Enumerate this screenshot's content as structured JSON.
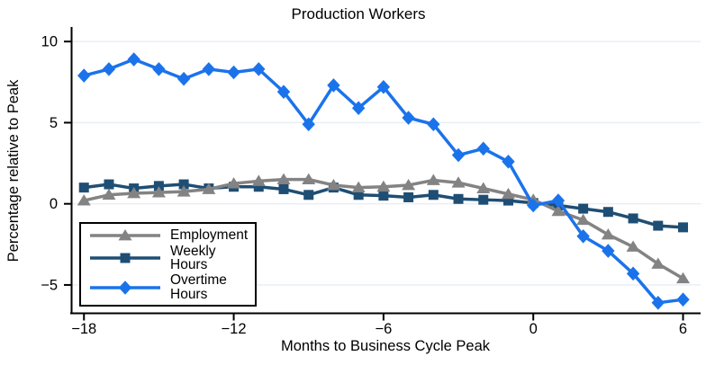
{
  "chart_data": {
    "type": "line",
    "title": "Production Workers",
    "xlabel": "Months to Business Cycle Peak",
    "ylabel": "Percentage relative to Peak",
    "x": [
      -18,
      -17,
      -16,
      -15,
      -14,
      -13,
      -12,
      -11,
      -10,
      -9,
      -8,
      -7,
      -6,
      -5,
      -4,
      -3,
      -2,
      -1,
      0,
      1,
      2,
      3,
      4,
      5,
      6
    ],
    "x_ticks": [
      -18,
      -12,
      -6,
      0,
      6
    ],
    "x_tick_labels": [
      "−18",
      "−12",
      "−6",
      "0",
      "6"
    ],
    "y_ticks": [
      10,
      5,
      0,
      -5
    ],
    "y_tick_labels": [
      "10",
      "5",
      "0",
      "−5"
    ],
    "xlim": [
      -18.5,
      6.7
    ],
    "ylim": [
      -6.7,
      10.8
    ],
    "grid": true,
    "legend_position": "inside-bottom-left",
    "series": [
      {
        "name": "Employment",
        "marker": "triangle",
        "color": "#838383",
        "values": [
          0.2,
          0.55,
          0.65,
          0.7,
          0.75,
          0.9,
          1.25,
          1.4,
          1.5,
          1.5,
          1.15,
          1.0,
          1.05,
          1.15,
          1.45,
          1.3,
          0.95,
          0.6,
          0.25,
          -0.45,
          -1.0,
          -1.9,
          -2.65,
          -3.7,
          -4.6
        ]
      },
      {
        "name": "Weekly Hours",
        "marker": "square",
        "color": "#1F4E74",
        "values": [
          1.0,
          1.2,
          0.95,
          1.1,
          1.2,
          0.95,
          1.05,
          1.05,
          0.9,
          0.55,
          1.0,
          0.55,
          0.5,
          0.4,
          0.55,
          0.3,
          0.25,
          0.2,
          0.05,
          -0.1,
          -0.3,
          -0.5,
          -0.9,
          -1.35,
          -1.45
        ]
      },
      {
        "name": "Overtime Hours",
        "marker": "diamond",
        "color": "#1B73EB",
        "values": [
          7.9,
          8.3,
          8.9,
          8.3,
          7.7,
          8.3,
          8.1,
          8.3,
          6.9,
          4.9,
          7.3,
          5.9,
          7.2,
          5.3,
          4.9,
          3.0,
          3.4,
          2.6,
          -0.1,
          0.2,
          -2.0,
          -2.9,
          -4.3,
          -6.1,
          -5.9
        ]
      }
    ]
  },
  "colors": {
    "background": "#FFFFFF",
    "grid": "#E6EEF5",
    "axis": "#000000",
    "text": "#000000",
    "legend_border": "#000000"
  }
}
